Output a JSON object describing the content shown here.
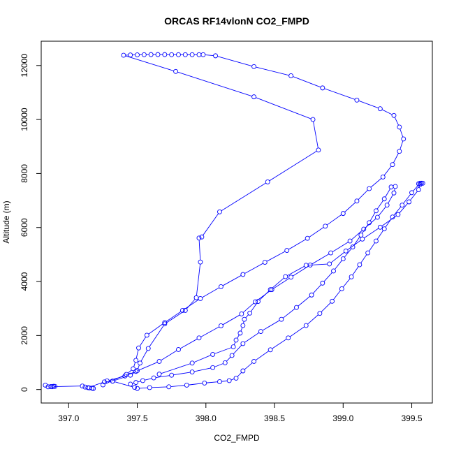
{
  "chart_data": {
    "type": "line",
    "title": "ORCAS RF14vlonN CO2_FMPD",
    "xlabel": "CO2_FMPD",
    "ylabel": "Altitude (m)",
    "xlim": [
      396.8,
      399.65
    ],
    "ylim": [
      -500,
      12900
    ],
    "xticks": [
      "397.0",
      "397.5",
      "398.0",
      "398.5",
      "399.0",
      "399.5"
    ],
    "xtick_values": [
      397.0,
      397.5,
      398.0,
      398.5,
      399.0,
      399.5
    ],
    "yticks": [
      "0",
      "2000",
      "4000",
      "6000",
      "8000",
      "10000",
      "12000"
    ],
    "ytick_values": [
      0,
      2000,
      4000,
      6000,
      8000,
      10000,
      12000
    ],
    "grid": false,
    "line_style": "line-and-points",
    "marker": "open-circle",
    "colors": {
      "series": "#0000ff",
      "axis": "#000000",
      "background": "#ffffff"
    },
    "series": [
      {
        "x": [
          396.83,
          396.85,
          396.87,
          396.89,
          396.9,
          396.88,
          397.1,
          397.12,
          397.15,
          397.18,
          397.17,
          397.14,
          397.26,
          397.32,
          397.45,
          397.5,
          397.52,
          397.58,
          397.7,
          397.85,
          397.93,
          397.96,
          397.95,
          397.97,
          398.1,
          398.45,
          398.82,
          398.78,
          398.35,
          397.78,
          397.4,
          397.45,
          397.5,
          397.55,
          397.6,
          397.65,
          397.7,
          397.75,
          397.8,
          397.85,
          397.9,
          397.95,
          397.98,
          398.07,
          398.35,
          398.62,
          398.85,
          399.1,
          399.27,
          399.37,
          399.41,
          399.44,
          399.41,
          399.36,
          399.29,
          399.19,
          399.1,
          399.0,
          398.87,
          398.74,
          398.59,
          398.43,
          398.27,
          398.11,
          397.96,
          397.83,
          397.7,
          397.57,
          397.51,
          397.49,
          397.47,
          397.42,
          397.25
        ],
        "y": [
          160,
          100,
          110,
          120,
          115,
          105,
          130,
          90,
          60,
          40,
          50,
          70,
          280,
          310,
          530,
          700,
          980,
          1520,
          2430,
          2930,
          3400,
          4720,
          5610,
          5650,
          6580,
          7690,
          8870,
          10000,
          10840,
          11780,
          12380,
          12390,
          12395,
          12400,
          12405,
          12405,
          12405,
          12400,
          12400,
          12400,
          12400,
          12400,
          12400,
          12360,
          11960,
          11620,
          11170,
          10720,
          10400,
          10150,
          9720,
          9280,
          8820,
          8330,
          7870,
          7440,
          6980,
          6520,
          6050,
          5600,
          5150,
          4710,
          4260,
          3810,
          3370,
          2930,
          2480,
          2010,
          1540,
          1080,
          770,
          560,
          170
        ]
      },
      {
        "x": [
          397.66,
          397.9,
          398.05,
          398.2,
          398.22,
          398.25,
          398.27,
          398.28,
          398.32,
          398.38,
          398.47,
          398.58,
          398.73,
          398.9,
          399.02,
          399.14,
          399.27,
          399.4,
          399.48,
          399.55,
          399.56,
          399.55,
          399.57,
          399.58,
          399.56,
          399.5,
          399.43,
          399.36,
          399.3,
          399.24,
          399.18,
          399.12,
          399.06,
          398.99,
          398.92,
          398.83,
          398.73,
          398.6,
          398.47,
          398.35,
          398.27,
          398.22,
          398.17,
          398.1,
          397.99,
          397.86,
          397.73,
          397.59,
          397.5,
          397.48,
          397.32
        ],
        "y": [
          570,
          980,
          1300,
          1580,
          1830,
          2090,
          2370,
          2600,
          2830,
          3260,
          3700,
          4180,
          4600,
          4650,
          5130,
          5570,
          6010,
          6480,
          6950,
          7400,
          7590,
          7620,
          7640,
          7640,
          7640,
          7290,
          6830,
          6390,
          5950,
          5500,
          5060,
          4620,
          4170,
          3730,
          3270,
          2820,
          2370,
          1910,
          1470,
          1040,
          690,
          420,
          330,
          290,
          240,
          160,
          100,
          70,
          40,
          80,
          310
        ]
      },
      {
        "x": [
          397.28,
          397.41,
          397.49,
          397.66,
          397.8,
          397.95,
          398.11,
          398.26,
          398.36,
          398.48,
          398.62,
          398.76,
          398.91,
          399.05,
          399.15,
          399.25,
          399.32,
          399.37,
          399.38,
          399.35,
          399.3,
          399.24,
          399.19,
          399.13,
          399.07,
          399.0,
          398.93,
          398.85,
          398.77,
          398.66,
          398.55,
          398.4,
          398.27,
          398.19,
          398.14,
          398.05,
          397.9,
          397.75,
          397.62,
          397.54,
          397.49,
          397.45
        ],
        "y": [
          320,
          500,
          670,
          1040,
          1480,
          1910,
          2360,
          2800,
          3250,
          3700,
          4160,
          4610,
          5060,
          5500,
          5940,
          6380,
          6830,
          7280,
          7520,
          7500,
          7060,
          6620,
          6180,
          5720,
          5280,
          4840,
          4390,
          3940,
          3500,
          3040,
          2600,
          2150,
          1700,
          1260,
          990,
          810,
          650,
          530,
          430,
          330,
          260,
          200
        ]
      }
    ]
  }
}
